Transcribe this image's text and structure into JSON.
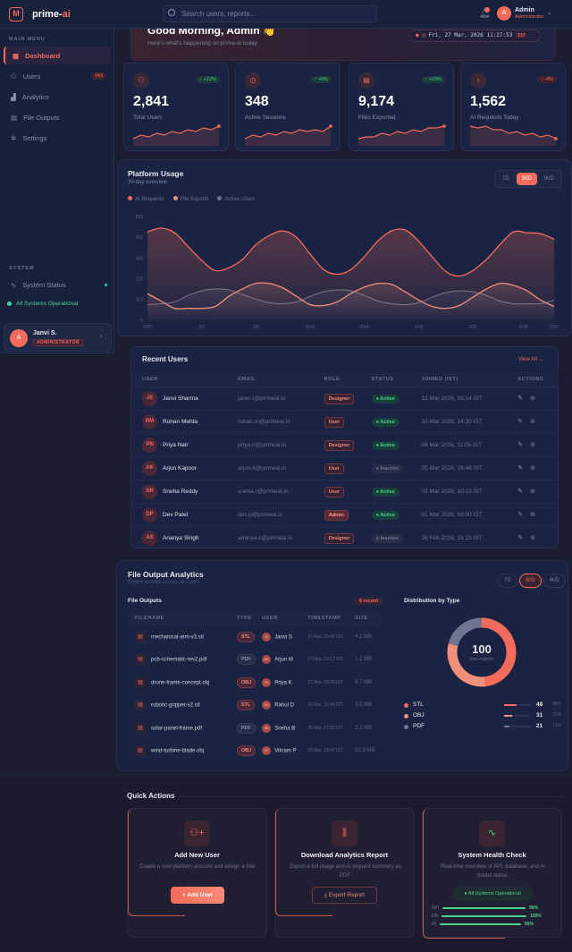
{
  "header": {
    "logo_text": "prime-",
    "logo_accent": "ai",
    "search_placeholder": "Search users, reports...",
    "notification_count": "3",
    "user_initial": "A",
    "user_name": "Admin",
    "user_role": "Administrator"
  },
  "sidebar": {
    "main_menu_label": "MAIN MENU",
    "items": [
      {
        "label": "Dashboard",
        "icon": "grid-icon",
        "active": true
      },
      {
        "label": "Users",
        "icon": "users-icon",
        "badge": "143"
      },
      {
        "label": "Analytics",
        "icon": "bar-chart-icon"
      },
      {
        "label": "File Outputs",
        "icon": "file-icon"
      },
      {
        "label": "Settings",
        "icon": "gear-icon"
      }
    ],
    "system_label": "SYSTEM",
    "system_status_label": "System Status",
    "system_ok": "All Systems Operational",
    "profile": {
      "initial": "A",
      "name": "Janvi S.",
      "role": "ADMINISTRATOR"
    }
  },
  "greeting": {
    "title": "Good Morning, Admin 👋",
    "subtitle": "Here's what's happening on prime-ai today.",
    "datetime": "Fri, 27 Mar, 2026 11:27:53",
    "tz": "IST"
  },
  "stats": [
    {
      "value": "2,841",
      "label": "Total Users",
      "change": "↑ +12%",
      "trend": "up",
      "icon": "users-icon",
      "spark": [
        2,
        4,
        3,
        5,
        4,
        6,
        5,
        7,
        6,
        8,
        7,
        9
      ]
    },
    {
      "value": "348",
      "label": "Active Sessions",
      "change": "↑ +8%",
      "trend": "up",
      "icon": "clock-icon",
      "spark": [
        2,
        4,
        3,
        5,
        4,
        6,
        5,
        7,
        6,
        7,
        6,
        9
      ]
    },
    {
      "value": "9,174",
      "label": "Files Exported",
      "change": "↑ +23%",
      "trend": "up",
      "icon": "file-plus-icon",
      "spark": [
        2,
        3,
        3,
        5,
        4,
        6,
        5,
        7,
        6,
        8,
        8,
        9
      ]
    },
    {
      "value": "1,562",
      "label": "AI Requests Today",
      "change": "↓ -4%",
      "trend": "down",
      "icon": "lightbulb-icon",
      "spark": [
        9,
        8,
        9,
        7,
        7,
        5,
        6,
        4,
        5,
        3,
        4,
        2
      ]
    }
  ],
  "platform_usage": {
    "title": "Platform Usage",
    "subtitle": "30-day overview",
    "ranges": [
      "7D",
      "30D",
      "90D"
    ],
    "selected_range": "30D"
  },
  "chart_data": {
    "type": "area",
    "title": "Platform Usage",
    "x": [
      "2/26",
      "2/27",
      "2/28",
      "3/1",
      "3/2",
      "3/3",
      "3/4",
      "3/5",
      "3/6",
      "3/7",
      "3/8",
      "3/9",
      "3/10",
      "3/11",
      "3/12",
      "3/13",
      "3/14",
      "3/15",
      "3/16",
      "3/17",
      "3/18",
      "3/19",
      "3/20",
      "3/21",
      "3/22",
      "3/23",
      "3/24",
      "3/25",
      "3/26",
      "3/27",
      "3/27"
    ],
    "x_tick_labels": [
      "2/26",
      "3/2",
      "3/6",
      "3/10",
      "3/14",
      "3/18",
      "3/22",
      "3/26",
      "3/27"
    ],
    "y_ticks": [
      0,
      113,
      225,
      338,
      451,
      563
    ],
    "ylim": [
      0,
      563
    ],
    "legend_position": "top-left",
    "series": [
      {
        "name": "AI Requests",
        "color": "#f26b5b",
        "values": [
          480,
          500,
          475,
          400,
          325,
          270,
          285,
          330,
          410,
          460,
          485,
          450,
          360,
          275,
          250,
          275,
          345,
          430,
          485,
          490,
          430,
          345,
          265,
          240,
          270,
          330,
          410,
          480,
          475,
          470,
          440
        ]
      },
      {
        "name": "File Exports",
        "color": "#f0907c",
        "values": [
          145,
          105,
          65,
          65,
          65,
          75,
          130,
          170,
          200,
          200,
          175,
          130,
          85,
          80,
          100,
          145,
          180,
          200,
          195,
          155,
          110,
          75,
          65,
          80,
          125,
          170,
          200,
          190,
          160,
          110,
          75
        ]
      },
      {
        "name": "Active Users",
        "color": "#6d7590",
        "values": [
          85,
          90,
          100,
          135,
          160,
          170,
          165,
          140,
          115,
          95,
          90,
          100,
          130,
          155,
          165,
          160,
          135,
          105,
          90,
          85,
          95,
          125,
          150,
          160,
          155,
          135,
          105,
          90,
          90,
          90,
          110
        ]
      }
    ]
  },
  "recent_users": {
    "title": "Recent Users",
    "view_all": "View All →",
    "columns": [
      "USER",
      "EMAIL",
      "ROLE",
      "STATUS",
      "JOINED (IST)",
      "ACTIONS"
    ],
    "rows": [
      {
        "initials": "JS",
        "name": "Janvi Sharma",
        "email": "janvi.s@primeai.in",
        "role": "Designer",
        "status": "Active",
        "joined": "12 Mar 2026, 09:14 IST"
      },
      {
        "initials": "RM",
        "name": "Rohan Mehta",
        "email": "rohan.m@primeai.in",
        "role": "User",
        "status": "Active",
        "joined": "10 Mar 2026, 14:30 IST"
      },
      {
        "initials": "PN",
        "name": "Priya Nair",
        "email": "priya.n@primeai.in",
        "role": "Designer",
        "status": "Active",
        "joined": "08 Mar 2026, 11:05 IST"
      },
      {
        "initials": "AK",
        "name": "Arjun Kapoor",
        "email": "arjun.k@primeai.in",
        "role": "User",
        "status": "Inactive",
        "joined": "05 Mar 2026, 16:48 IST"
      },
      {
        "initials": "SR",
        "name": "Sneha Reddy",
        "email": "sneha.r@primeai.in",
        "role": "User",
        "status": "Active",
        "joined": "03 Mar 2026, 10:22 IST"
      },
      {
        "initials": "DP",
        "name": "Dev Patel",
        "email": "dev.p@primeai.in",
        "role": "Admin",
        "status": "Active",
        "joined": "01 Mar 2026, 08:00 IST"
      },
      {
        "initials": "AS",
        "name": "Ananya Singh",
        "email": "ananya.s@primeai.in",
        "role": "Designer",
        "status": "Inactive",
        "joined": "26 Feb 2026, 15:33 IST"
      }
    ]
  },
  "file_analytics": {
    "title": "File Output Analytics",
    "subtitle": "Export events across all users",
    "ranges": [
      "7D",
      "30D",
      "90D"
    ],
    "selected_range": "30D",
    "outputs_title": "File Outputs",
    "recent_badge": "6 recent",
    "columns": [
      "FILENAME",
      "TYPE",
      "USER",
      "TIMESTAMP",
      "SIZE"
    ],
    "rows": [
      {
        "file": "mechanical-arm-v3.stl",
        "type": "STL",
        "initials": "JS",
        "user": "Janvi S",
        "time": "27 Mar, 10:42 IST",
        "size": "4.2 MB"
      },
      {
        "file": "pcb-schematic-rev2.pdf",
        "type": "PDF",
        "initials": "AM",
        "user": "Arjun M",
        "time": "27 Mar, 10:17 IST",
        "size": "1.1 MB"
      },
      {
        "file": "drone-frame-concept.obj",
        "type": "OBJ",
        "initials": "PK",
        "user": "Priya K",
        "time": "27 Mar, 09:58 IST",
        "size": "8.7 MB"
      },
      {
        "file": "robotic-gripper-v2.stl",
        "type": "STL",
        "initials": "RD",
        "user": "Rahul D",
        "time": "26 Mar, 23:34 IST",
        "size": "3.5 MB"
      },
      {
        "file": "solar-panel-frame.pdf",
        "type": "PDF",
        "initials": "SB",
        "user": "Sneha B",
        "time": "26 Mar, 21:05 IST",
        "size": "2.2 MB"
      },
      {
        "file": "wind-turbine-blade.obj",
        "type": "OBJ",
        "initials": "VP",
        "user": "Vikram P",
        "time": "26 Mar, 18:47 IST",
        "size": "12.3 MB"
      }
    ],
    "distribution": {
      "title": "Distribution by Type",
      "total": "100",
      "total_label": "total exports",
      "items": [
        {
          "name": "STL",
          "count": 48,
          "count_label": "48",
          "pct": "48%",
          "color": "#f26b5b"
        },
        {
          "name": "OBJ",
          "count": 31,
          "count_label": "31",
          "pct": "31%",
          "color": "#f0907c"
        },
        {
          "name": "PDF",
          "count": 21,
          "count_label": "21",
          "pct": "21%",
          "color": "#6d7590"
        }
      ]
    }
  },
  "quick_actions": {
    "title": "Quick Actions",
    "cards": [
      {
        "title": "Add New User",
        "desc": "Create a new platform account and assign a role.",
        "button": "+ Add User",
        "icon": "user-plus-icon"
      },
      {
        "title": "Download Analytics Report",
        "desc": "Export a full usage and AI request summary as PDF.",
        "button": "⤓ Export Report",
        "icon": "chart-export-icon"
      },
      {
        "title": "System Health Check",
        "desc": "Real-time overview of API, database, and AI model status.",
        "status": "All Systems Operational",
        "icon": "pulse-icon",
        "health": [
          {
            "name": "API",
            "pct": "98%",
            "value": 98
          },
          {
            "name": "DB",
            "pct": "100%",
            "value": 100
          },
          {
            "name": "AI",
            "pct": "96%",
            "value": 96
          }
        ]
      }
    ]
  }
}
